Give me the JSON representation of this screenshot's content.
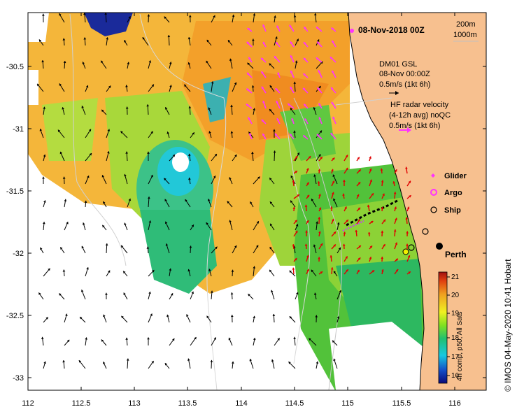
{
  "map": {
    "timestamp": "08-Nov-2018 00Z",
    "depth_legend": [
      "200m",
      "1000m"
    ],
    "glider_legend": {
      "title": "DM01 GSL",
      "time": "08-Nov 00:00Z",
      "scale": "0.5m/s (1kt 6h)"
    },
    "hf_legend": {
      "line1": "HF radar velocity",
      "line2": "(4-12h avg) noQC",
      "scale": "0.5m/s (1kt 6h)"
    },
    "symbol_legend": [
      "Glider",
      "Argo",
      "Ship"
    ],
    "city": "Perth",
    "x_ticks": [
      "112",
      "112.5",
      "113",
      "113.5",
      "114",
      "114.5",
      "115",
      "115.5",
      "116"
    ],
    "y_ticks": [
      "-30.5",
      "-31",
      "-31.5",
      "-32",
      "-32.5",
      "-33"
    ],
    "colorbar": {
      "ticks": [
        "21",
        "20",
        "19",
        "18",
        "17",
        "16"
      ],
      "label": "4h comp, p50, All Sats"
    },
    "credit": "© IMOS 04-May-2020 10:41 Hobart",
    "colors": {
      "land": "#f7c08f",
      "hf_arrow": "#ff33ff",
      "glider_arrow": "#e00000"
    }
  }
}
